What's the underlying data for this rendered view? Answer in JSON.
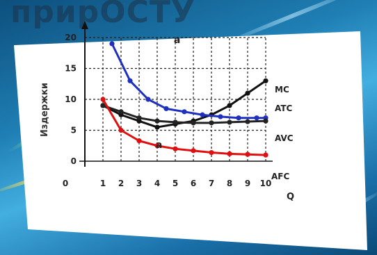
{
  "background": {
    "title": "прирОСТУ"
  },
  "chart_data": {
    "type": "line",
    "ylabel": "Издержки",
    "xlabel": "Q",
    "xlim": [
      0,
      10
    ],
    "ylim": [
      0,
      20
    ],
    "x_ticks": [
      "0",
      "1",
      "2",
      "3",
      "4",
      "5",
      "6",
      "7",
      "8",
      "9",
      "10"
    ],
    "y_ticks": [
      "0",
      "5",
      "10",
      "15",
      "20"
    ],
    "annotations": [
      "a",
      "a"
    ],
    "series": [
      {
        "name": "MC",
        "color": "#111111",
        "x": [
          1,
          2,
          3,
          4,
          5,
          6,
          7,
          8,
          9,
          10
        ],
        "y": [
          9,
          7.5,
          6.5,
          5.5,
          6,
          6.5,
          7.5,
          9,
          11,
          13
        ]
      },
      {
        "name": "ATC",
        "color": "#1f2fc0",
        "x": [
          1.5,
          2.5,
          3.5,
          4.5,
          5.5,
          6.5,
          7.5,
          8.5,
          9.5,
          10
        ],
        "y": [
          19,
          13,
          10,
          8.5,
          8,
          7.5,
          7.2,
          7,
          7,
          7
        ]
      },
      {
        "name": "AVC",
        "color": "#222222",
        "x": [
          1,
          2,
          3,
          4,
          5,
          6,
          7,
          8,
          9,
          10
        ],
        "y": [
          9,
          8,
          7,
          6.5,
          6.3,
          6.2,
          6.2,
          6.3,
          6.4,
          6.5
        ]
      },
      {
        "name": "AFC",
        "color": "#e01010",
        "x": [
          1,
          2,
          3,
          4,
          5,
          6,
          7,
          8,
          9,
          10
        ],
        "y": [
          10,
          5,
          3.3,
          2.5,
          2,
          1.7,
          1.4,
          1.2,
          1.1,
          1
        ]
      }
    ]
  }
}
